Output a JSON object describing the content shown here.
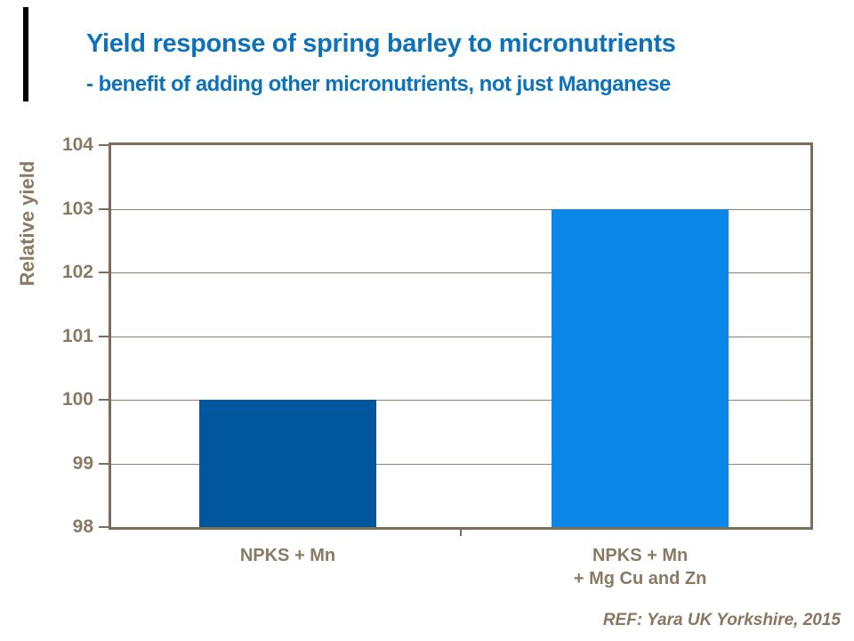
{
  "slide": {
    "title": "Yield response of spring barley to micronutrients",
    "subtitle": "- benefit of adding other micronutrients, not just Manganese",
    "reference": "REF: Yara UK Yorkshire, 2015"
  },
  "colors": {
    "title_blue": "#0d72ba",
    "bar_dark_blue": "#01579d",
    "bar_light_blue": "#0b86e9",
    "axis_text_brown": "#8a7a64",
    "plot_border_brown": "#7d6c5a",
    "gridline_brown": "#8f7f6d",
    "reference_brown": "#8a7560",
    "accent_black": "#000000"
  },
  "chart_data": {
    "type": "bar",
    "title": "Yield response of spring barley to micronutrients",
    "subtitle": "- benefit of adding other micronutrients, not just Manganese",
    "categories": [
      "NPKS + Mn",
      "NPKS + Mn + Mg Cu and Zn"
    ],
    "category_label_lines": [
      [
        "NPKS + Mn"
      ],
      [
        "NPKS + Mn",
        "+ Mg Cu and Zn"
      ]
    ],
    "values": [
      100,
      103
    ],
    "bar_colors": [
      "#01579d",
      "#0b86e9"
    ],
    "xlabel": "",
    "ylabel": "Relative yield",
    "ylim": [
      98,
      104
    ],
    "yticks": [
      98,
      99,
      100,
      101,
      102,
      103,
      104
    ],
    "grid": true,
    "legend": false,
    "source": "REF: Yara UK Yorkshire, 2015"
  }
}
